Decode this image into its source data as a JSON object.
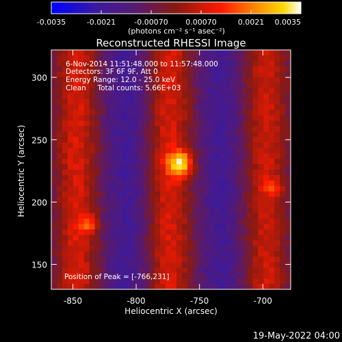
{
  "chart_data": {
    "type": "heatmap",
    "title": "Reconstructed RHESSI Image",
    "xlabel": "Heliocentric X (arcsec)",
    "ylabel": "Heliocentric Y (arcsec)",
    "xlim": [
      -867,
      -678
    ],
    "ylim": [
      130,
      322
    ],
    "xticks": [
      -850,
      -800,
      -750,
      -700
    ],
    "xtick_labels": [
      "-850",
      "-800",
      "-750",
      "-700"
    ],
    "yticks": [
      150,
      200,
      250,
      300
    ],
    "ytick_labels": [
      "150",
      "200",
      "250",
      "300"
    ],
    "colorbar": {
      "min": -0.0035,
      "max": 0.0035,
      "ticks": [
        -0.0035,
        -0.0021,
        -0.0007,
        0.0007,
        0.0021,
        0.0035
      ],
      "tick_labels": [
        "-0.0035",
        "-0.0021",
        "-0.00070",
        "0.00070",
        "0.0021",
        "0.0035"
      ],
      "unit_label": "(photons cm⁻² s⁻¹ asec⁻²)",
      "colormap": "blue-purple-red-orange-yellow-white"
    },
    "annotations": [
      "6-Nov-2014 11:51:48.000 to 11:57:48.000",
      "Detectors: 3F 6F 9F, Att 0",
      "Energy Range: 12.0 - 25.0 keV",
      "Clean     Total counts: 5.66E+03"
    ],
    "peak_label": "Position of Peak = [-766,231]",
    "peak": {
      "x": -766,
      "y": 231
    },
    "bands": [
      {
        "x_center": -847,
        "width": 18,
        "level": 0.62
      },
      {
        "x_center": -808,
        "width": 14,
        "level": 0.22
      },
      {
        "x_center": -773,
        "width": 18,
        "level": 0.62
      },
      {
        "x_center": -733,
        "width": 14,
        "level": 0.22
      },
      {
        "x_center": -697,
        "width": 18,
        "level": 0.6
      }
    ],
    "hotspots": [
      {
        "x": -766,
        "y": 231,
        "level": 1.0
      },
      {
        "x": -838,
        "y": 182,
        "level": 0.8
      },
      {
        "x": -693,
        "y": 212,
        "level": 0.72
      }
    ]
  },
  "footer": {
    "timestamp": "19-May-2022 04:00"
  }
}
